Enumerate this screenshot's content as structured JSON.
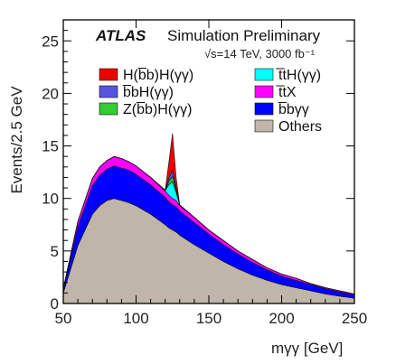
{
  "chart_data": {
    "type": "area",
    "stacked": true,
    "title_prefix": "ATLAS",
    "title": "Simulation Preliminary",
    "subtitle": "√s=14 TeV, 3000 fb⁻¹",
    "xlabel": "mγγ [GeV]",
    "ylabel": "Events/2.5 GeV",
    "xlim": [
      50,
      250
    ],
    "ylim": [
      0,
      27
    ],
    "x_ticks": [
      "50",
      "100",
      "150",
      "200",
      "250"
    ],
    "y_ticks": [
      "0",
      "5",
      "10",
      "15",
      "20",
      "25"
    ],
    "x_tick_values": [
      50,
      100,
      150,
      200,
      250
    ],
    "y_tick_values": [
      0,
      5,
      10,
      15,
      20,
      25
    ],
    "x": [
      50,
      60,
      70,
      75,
      80,
      85,
      90,
      95,
      100,
      110,
      120,
      122.5,
      125,
      127.5,
      130,
      140,
      150,
      160,
      170,
      180,
      190,
      200,
      210,
      220,
      230,
      240,
      250
    ],
    "series": [
      {
        "name": "Others",
        "color": "#bfb5a8",
        "values": [
          1.0,
          5.5,
          8.5,
          9.3,
          9.8,
          10.0,
          9.8,
          9.6,
          9.3,
          8.5,
          7.5,
          7.2,
          7.0,
          6.8,
          6.5,
          5.6,
          4.8,
          4.0,
          3.3,
          2.7,
          2.2,
          1.8,
          1.5,
          1.2,
          0.9,
          0.7,
          0.5
        ]
      },
      {
        "name": "b̅bγγ",
        "color": "#0000ff",
        "values": [
          0.3,
          1.8,
          2.7,
          2.9,
          3.0,
          3.1,
          3.1,
          3.1,
          3.0,
          2.8,
          2.6,
          2.5,
          2.4,
          2.4,
          2.3,
          2.1,
          1.8,
          1.6,
          1.4,
          1.2,
          1.0,
          0.8,
          0.7,
          0.6,
          0.5,
          0.4,
          0.3
        ]
      },
      {
        "name": "t̅tX",
        "color": "#ff00ff",
        "values": [
          0.1,
          0.5,
          0.7,
          0.8,
          0.8,
          0.9,
          0.9,
          0.8,
          0.8,
          0.7,
          0.6,
          0.6,
          0.6,
          0.6,
          0.5,
          0.5,
          0.4,
          0.4,
          0.3,
          0.3,
          0.2,
          0.2,
          0.2,
          0.1,
          0.1,
          0.1,
          0.1
        ]
      },
      {
        "name": "t̅tH(γγ)",
        "color": "#00ffff",
        "values": [
          0,
          0,
          0,
          0,
          0,
          0,
          0,
          0,
          0,
          0,
          0.05,
          1.0,
          1.6,
          0.8,
          0.05,
          0,
          0,
          0,
          0,
          0,
          0,
          0,
          0,
          0,
          0,
          0,
          0
        ]
      },
      {
        "name": "Z(b̅b)H(γγ)",
        "color": "#33cc33",
        "values": [
          0,
          0,
          0,
          0,
          0,
          0,
          0,
          0,
          0,
          0,
          0.02,
          0.3,
          0.5,
          0.2,
          0.02,
          0,
          0,
          0,
          0,
          0,
          0,
          0,
          0,
          0,
          0,
          0,
          0
        ]
      },
      {
        "name": "b̅bH(γγ)",
        "color": "#5555dd",
        "values": [
          0,
          0,
          0,
          0,
          0,
          0,
          0,
          0,
          0,
          0,
          0.01,
          0.3,
          0.6,
          0.2,
          0.01,
          0,
          0,
          0,
          0,
          0,
          0,
          0,
          0,
          0,
          0,
          0,
          0
        ]
      },
      {
        "name": "H(b̅b)H(γγ)",
        "color": "#ee0000",
        "values": [
          0,
          0,
          0,
          0,
          0,
          0,
          0,
          0,
          0,
          0,
          0.02,
          1.5,
          3.5,
          1.0,
          0.02,
          0,
          0,
          0,
          0,
          0,
          0,
          0,
          0,
          0,
          0,
          0,
          0
        ]
      }
    ],
    "legend": {
      "placement": "top",
      "left_column": [
        "H(b̅b)H(γγ)",
        "b̅bH(γγ)",
        "Z(b̅b)H(γγ)"
      ],
      "right_column": [
        "t̅tH(γγ)",
        "t̅tX",
        "b̅bγγ",
        "Others"
      ]
    }
  }
}
